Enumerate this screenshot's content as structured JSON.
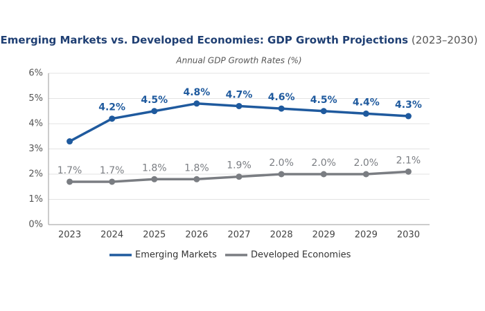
{
  "chart_data": {
    "type": "line",
    "title": "Emerging Markets vs. Developed Economies: GDP Growth Projections",
    "title_suffix": "(2023–2030)",
    "subtitle": "Annual GDP Growth Rates (%)",
    "categories": [
      "2023",
      "2024",
      "2025",
      "2026",
      "2027",
      "2028",
      "2029",
      "2029",
      "2030"
    ],
    "series": [
      {
        "name": "Emerging Markets",
        "color": "#1f5a9e",
        "values": [
          3.3,
          4.2,
          4.5,
          4.8,
          4.7,
          4.6,
          4.5,
          4.4,
          4.3
        ],
        "value_labels": [
          null,
          "4.2%",
          "4.5%",
          "4.8%",
          "4.7%",
          "4.6%",
          "4.5%",
          "4.4%",
          "4.3%"
        ]
      },
      {
        "name": "Developed Economies",
        "color": "#7a7d82",
        "values": [
          1.7,
          1.7,
          1.8,
          1.8,
          1.9,
          2.0,
          2.0,
          2.0,
          2.1
        ],
        "value_labels": [
          "1.7%",
          "1.7%",
          "1.8%",
          "1.8%",
          "1.9%",
          "2.0%",
          "2.0%",
          "2.0%",
          "2.1%"
        ]
      }
    ],
    "ylim": [
      0,
      6
    ],
    "yticks": [
      {
        "value": 0,
        "label": "0%"
      },
      {
        "value": 1,
        "label": "1%"
      },
      {
        "value": 2,
        "label": "2%"
      },
      {
        "value": 3,
        "label": "3%"
      },
      {
        "value": 4,
        "label": "4%"
      },
      {
        "value": 5,
        "label": "5%"
      },
      {
        "value": 6,
        "label": "6%"
      }
    ],
    "grid": true
  }
}
